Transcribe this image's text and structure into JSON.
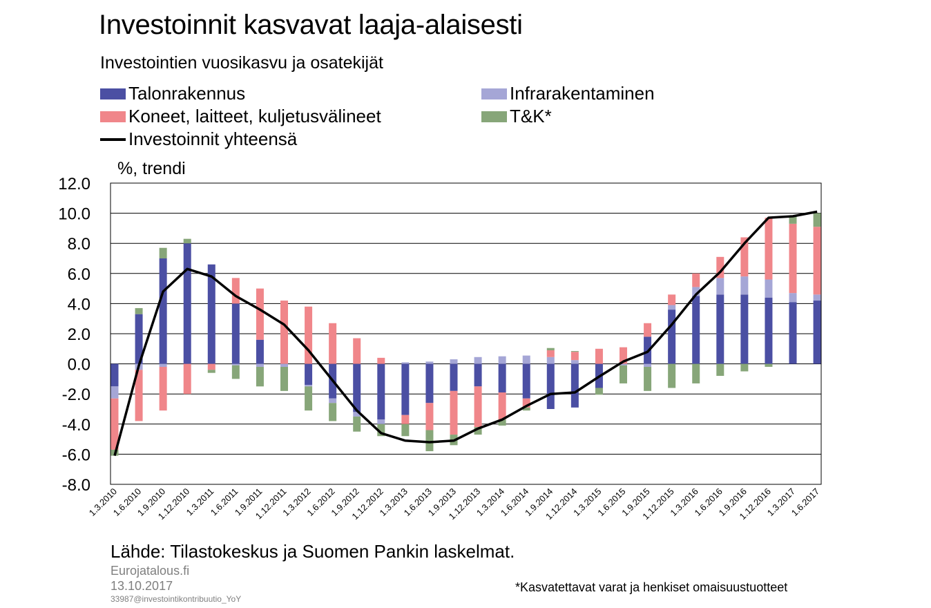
{
  "header": {
    "title": "Investoinnit kasvavat laaja-alaisesti",
    "subtitle": "Investointien vuosikasvu ja osatekijät",
    "unit_label": "%, trendi"
  },
  "colors": {
    "talonrakennus": "#4b4fa3",
    "infrarakentaminen": "#a5a6d6",
    "koneet": "#f0868a",
    "tk": "#87a679",
    "total_line": "#000000"
  },
  "legend": {
    "talonrakennus": "Talonrakennus",
    "infrarakentaminen": "Infrarakentaminen",
    "koneet": "Koneet, laitteet, kuljetusvälineet",
    "tk": "T&K*",
    "total": "Investoinnit yhteensä"
  },
  "chart_data": {
    "type": "bar",
    "stacked": true,
    "ylim": [
      -8,
      12
    ],
    "yticks": [
      "12.0",
      "10.0",
      "8.0",
      "6.0",
      "4.0",
      "2.0",
      "0.0",
      "-2.0",
      "-4.0",
      "-6.0",
      "-8.0"
    ],
    "ytick_values": [
      12,
      10,
      8,
      6,
      4,
      2,
      0,
      -2,
      -4,
      -6,
      -8
    ],
    "grid": "horizontal",
    "categories": [
      "1.3.2010",
      "1.6.2010",
      "1.9.2010",
      "1.12.2010",
      "1.3.2011",
      "1.6.2011",
      "1.9.2011",
      "1.12.2011",
      "1.3.2012",
      "1.6.2012",
      "1.9.2012",
      "1.12.2012",
      "1.3.2013",
      "1.6.2013",
      "1.9.2013",
      "1.12.2013",
      "1.3.2014",
      "1.6.2014",
      "1.9.2014",
      "1.12.2014",
      "1.3.2015",
      "1.6.2015",
      "1.9.2015",
      "1.12.2015",
      "1.3.2016",
      "1.6.2016",
      "1.9.2016",
      "1.12.2016",
      "1.3.2017",
      "1.6.2017"
    ],
    "series": [
      {
        "name": "Talonrakennus",
        "key": "talonrakennus",
        "values": [
          -1.5,
          3.3,
          7.0,
          8.0,
          6.6,
          4.0,
          1.6,
          0,
          -1.4,
          -2.3,
          -3.2,
          -3.7,
          -3.4,
          -2.6,
          -1.8,
          -1.5,
          -1.9,
          -2.3,
          -3.0,
          -2.9,
          -1.6,
          0,
          1.8,
          3.6,
          4.5,
          4.6,
          4.6,
          4.4,
          4.1,
          4.2
        ]
      },
      {
        "name": "Infrarakentaminen",
        "key": "infrarakentaminen",
        "values": [
          -0.8,
          -0.4,
          -0.2,
          0,
          0,
          -0.1,
          -0.2,
          -0.2,
          -0.1,
          -0.3,
          -0.3,
          -0.3,
          0.1,
          0.15,
          0.3,
          0.45,
          0.5,
          0.55,
          0.45,
          0.25,
          0,
          -0.1,
          -0.2,
          0.3,
          0.6,
          1.1,
          1.2,
          1.2,
          0.6,
          0.4
        ]
      },
      {
        "name": "Koneet, laitteet, kuljetusvälineet",
        "key": "koneet",
        "values": [
          -3.4,
          -3.4,
          -2.9,
          -2.0,
          -0.4,
          1.7,
          3.4,
          4.2,
          3.8,
          2.7,
          1.7,
          0.4,
          -0.6,
          -1.8,
          -2.9,
          -2.7,
          -1.8,
          -0.6,
          0.45,
          0.55,
          1.0,
          1.1,
          0.9,
          0.7,
          0.9,
          1.4,
          2.6,
          4.1,
          4.6,
          4.5
        ]
      },
      {
        "name": "T&K*",
        "key": "tk",
        "values": [
          -0.4,
          0.4,
          0.7,
          0.3,
          -0.2,
          -0.9,
          -1.3,
          -1.6,
          -1.6,
          -1.2,
          -1.0,
          -0.8,
          -0.8,
          -1.4,
          -0.7,
          -0.5,
          -0.4,
          -0.2,
          0.15,
          0.05,
          -0.45,
          -1.2,
          -1.6,
          -1.6,
          -1.3,
          -0.8,
          -0.5,
          -0.2,
          0.5,
          0.9
        ]
      }
    ],
    "line": {
      "name": "Investoinnit yhteensä",
      "values": [
        -6.1,
        -0.1,
        4.8,
        6.3,
        5.8,
        4.5,
        3.6,
        2.6,
        0.9,
        -1.1,
        -3.1,
        -4.6,
        -5.1,
        -5.2,
        -5.1,
        -4.3,
        -3.7,
        -2.8,
        -2.0,
        -1.9,
        -0.85,
        0.15,
        0.8,
        2.6,
        4.6,
        6.1,
        8.0,
        9.7,
        9.8,
        10.1
      ]
    }
  },
  "footer": {
    "source": "Lähde: Tilastokeskus ja Suomen Pankin laskelmat.",
    "site": "Eurojatalous.fi",
    "date": "13.10.2017",
    "code": "33987@investointikontribuutio_YoY",
    "footnote": "*Kasvatettavat varat ja henkiset omaisuustuotteet"
  }
}
